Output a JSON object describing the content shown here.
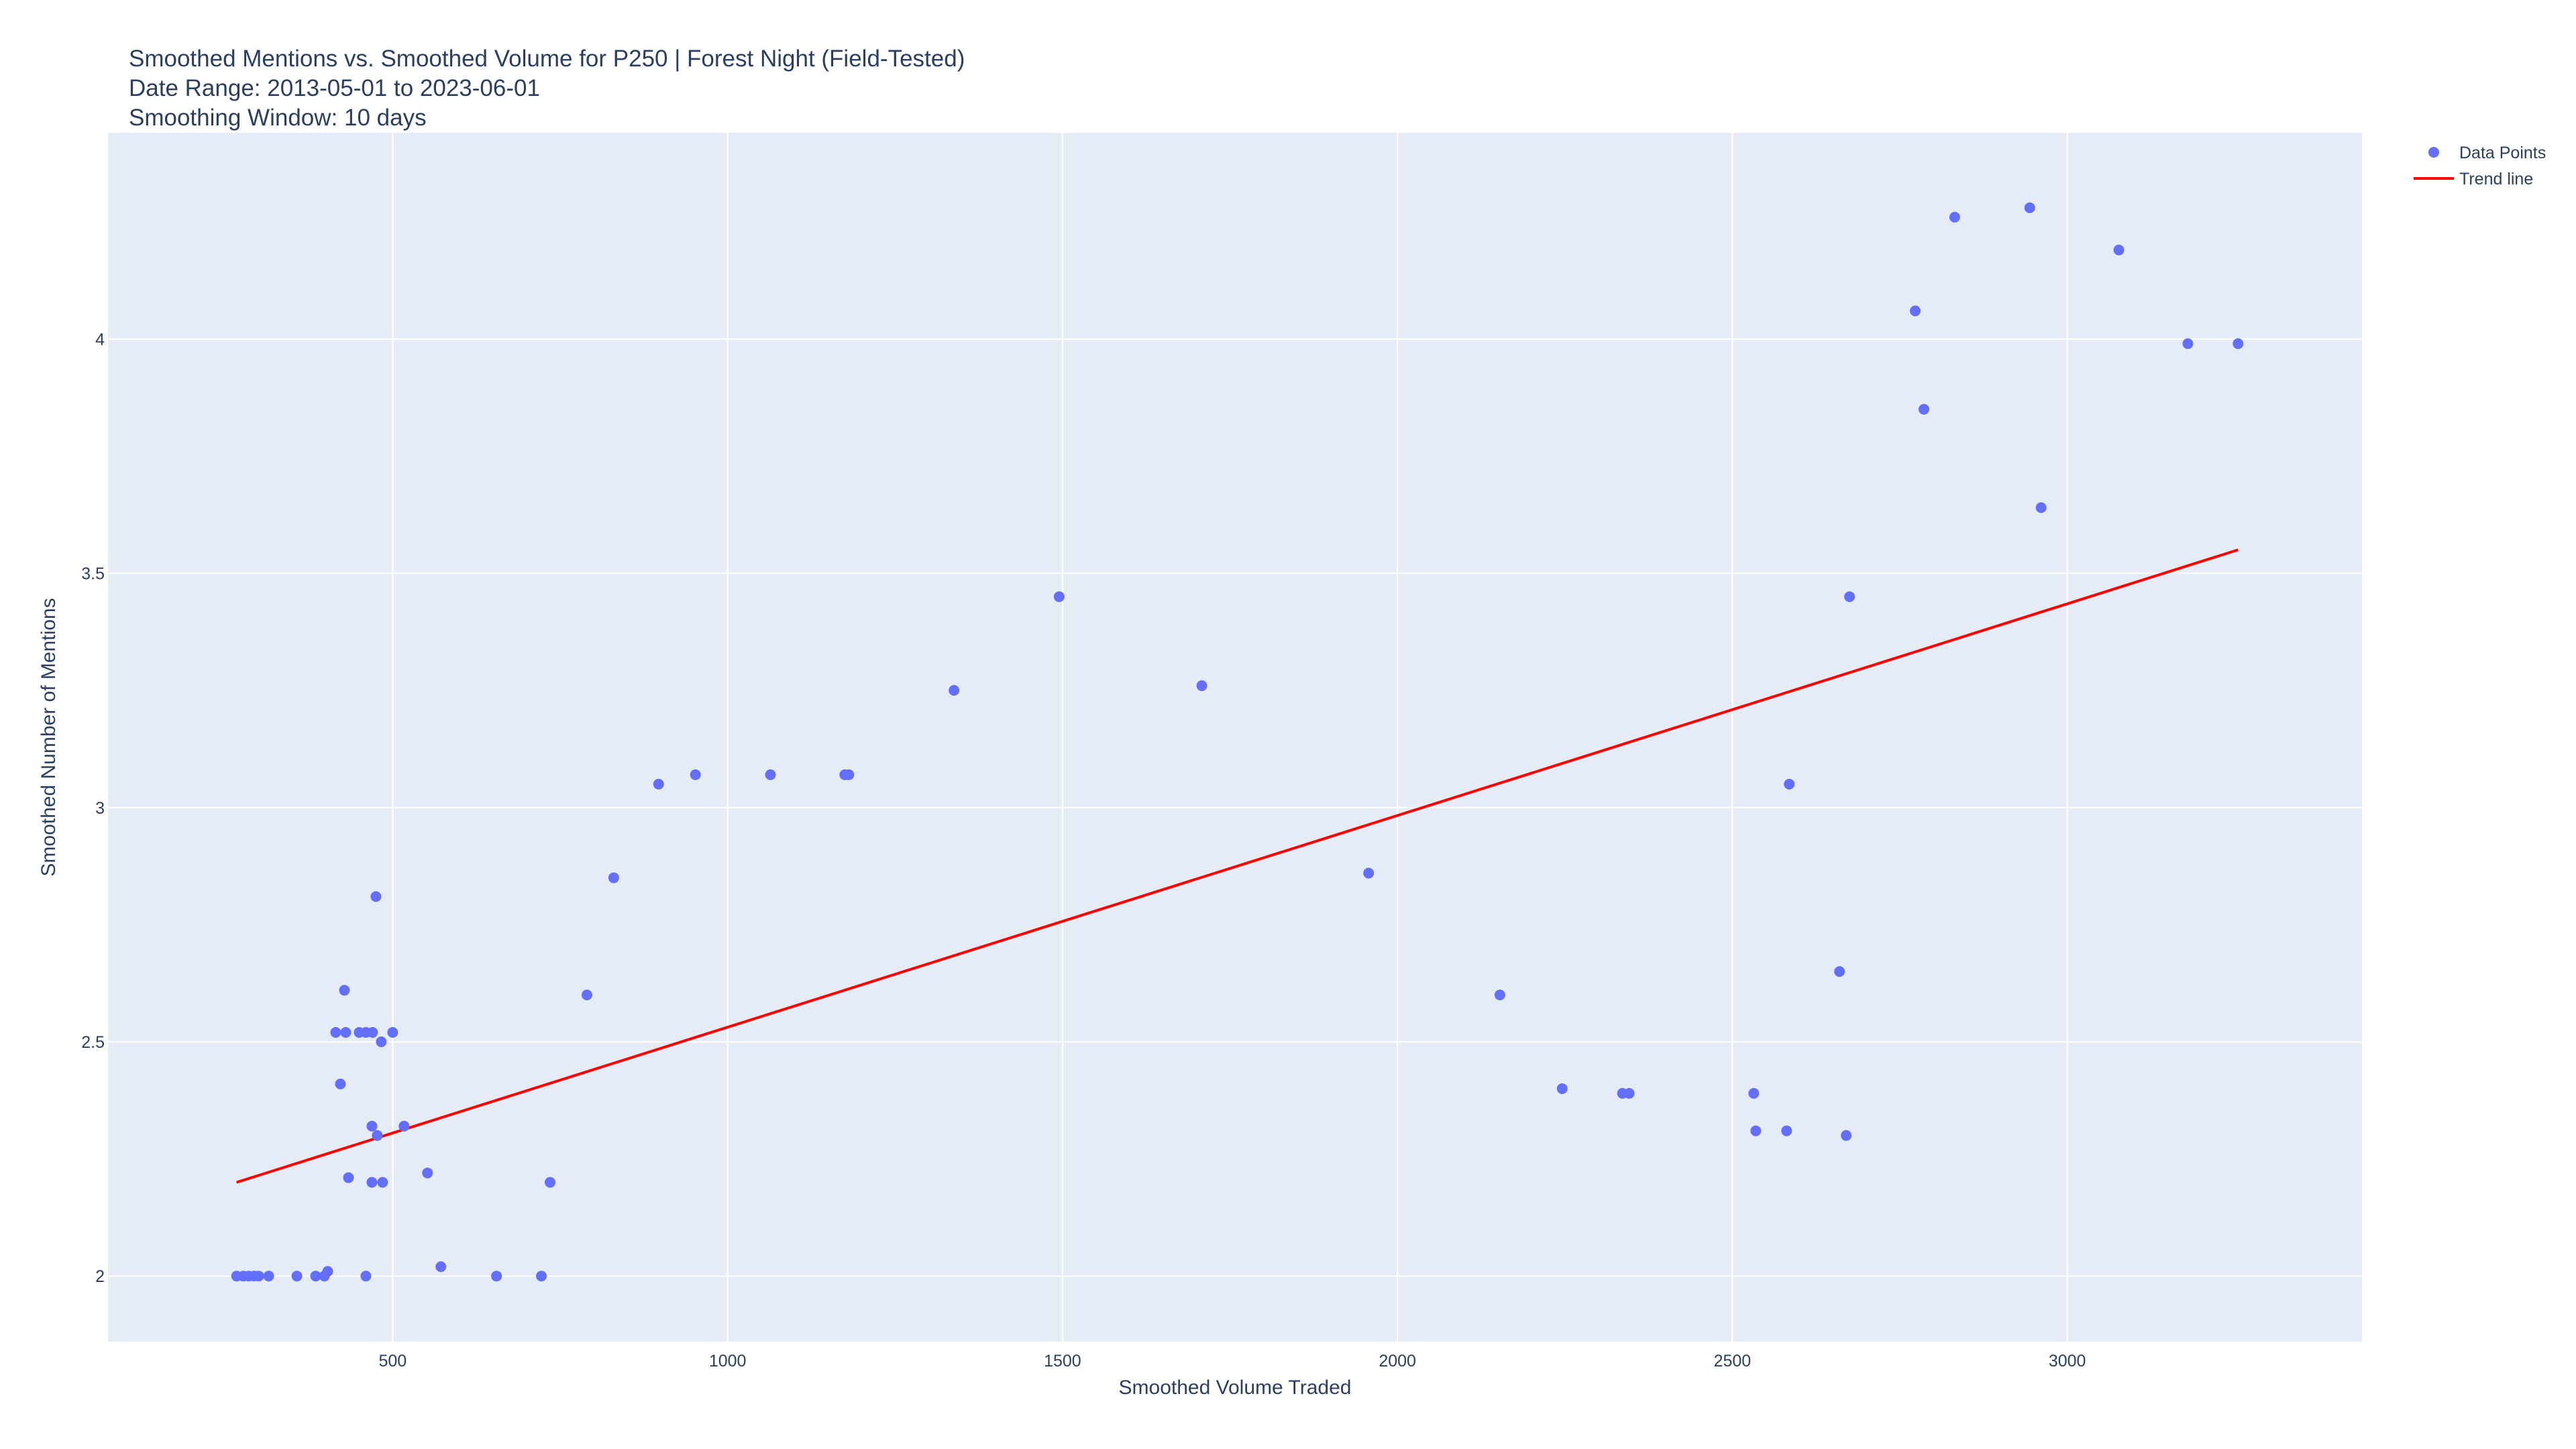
{
  "chart_data": {
    "type": "scatter",
    "title_lines": [
      "Smoothed Mentions vs. Smoothed Volume for P250 | Forest Night (Field-Tested)",
      "Date Range: 2013-05-01 to 2023-06-01",
      "Smoothing Window: 10 days"
    ],
    "xlabel": "Smoothed Volume Traded",
    "ylabel": "Smoothed Number of Mentions",
    "xlim": [
      75,
      3440
    ],
    "ylim": [
      1.86,
      4.44
    ],
    "x_ticks": [
      500,
      1000,
      1500,
      2000,
      2500,
      3000
    ],
    "y_ticks": [
      2,
      2.5,
      3,
      3.5,
      4
    ],
    "grid": true,
    "legend_position": "top-right",
    "colors": {
      "plot_bg": "#e5ecf6",
      "grid": "#ffffff",
      "points": "#636efa",
      "trend": "#ff0000",
      "text": "#2a3f5f"
    },
    "series": [
      {
        "name": "Data Points",
        "type": "scatter",
        "points": [
          [
            267,
            2.0
          ],
          [
            277,
            2.0
          ],
          [
            285,
            2.0
          ],
          [
            293,
            2.0
          ],
          [
            300,
            2.0
          ],
          [
            315,
            2.0
          ],
          [
            357,
            2.0
          ],
          [
            385,
            2.0
          ],
          [
            398,
            2.0
          ],
          [
            403,
            2.01
          ],
          [
            460,
            2.0
          ],
          [
            469,
            2.2
          ],
          [
            485,
            2.2
          ],
          [
            434,
            2.21
          ],
          [
            552,
            2.22
          ],
          [
            572,
            2.02
          ],
          [
            655,
            2.0
          ],
          [
            722,
            2.0
          ],
          [
            735,
            2.2
          ],
          [
            469,
            2.32
          ],
          [
            477,
            2.3
          ],
          [
            517,
            2.32
          ],
          [
            422,
            2.41
          ],
          [
            483,
            2.5
          ],
          [
            415,
            2.52
          ],
          [
            430,
            2.52
          ],
          [
            450,
            2.52
          ],
          [
            460,
            2.52
          ],
          [
            470,
            2.52
          ],
          [
            500,
            2.52
          ],
          [
            428,
            2.61
          ],
          [
            475,
            2.81
          ],
          [
            790,
            2.6
          ],
          [
            830,
            2.85
          ],
          [
            897,
            3.05
          ],
          [
            952,
            3.07
          ],
          [
            1064,
            3.07
          ],
          [
            1175,
            3.07
          ],
          [
            1181,
            3.07
          ],
          [
            1338,
            3.25
          ],
          [
            1495,
            3.45
          ],
          [
            1708,
            3.26
          ],
          [
            1957,
            2.86
          ],
          [
            2153,
            2.6
          ],
          [
            2246,
            2.4
          ],
          [
            2336,
            2.39
          ],
          [
            2346,
            2.39
          ],
          [
            2532,
            2.39
          ],
          [
            2535,
            2.31
          ],
          [
            2581,
            2.31
          ],
          [
            2670,
            2.3
          ],
          [
            2660,
            2.65
          ],
          [
            2585,
            3.05
          ],
          [
            2675,
            3.45
          ],
          [
            2773,
            4.06
          ],
          [
            2786,
            3.85
          ],
          [
            2832,
            4.26
          ],
          [
            2944,
            4.28
          ],
          [
            2961,
            3.64
          ],
          [
            3077,
            4.19
          ],
          [
            3180,
            3.99
          ],
          [
            3255,
            3.99
          ]
        ]
      },
      {
        "name": "Trend line",
        "type": "line",
        "points": [
          [
            267,
            2.2
          ],
          [
            3255,
            3.55
          ]
        ]
      }
    ]
  }
}
